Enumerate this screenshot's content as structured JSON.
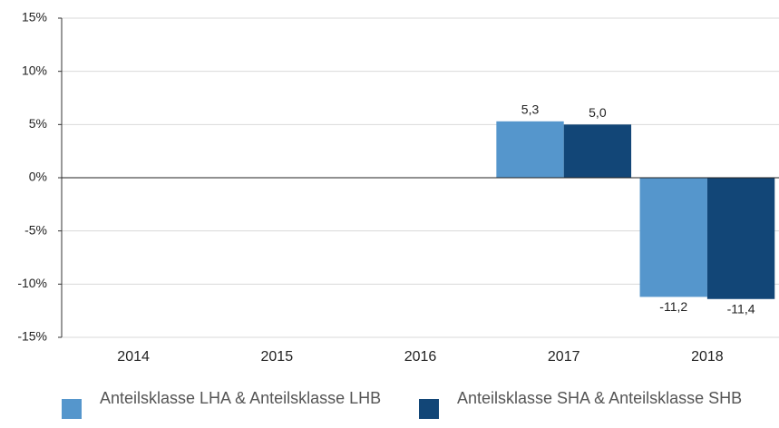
{
  "chart_data": {
    "type": "bar",
    "categories": [
      "2014",
      "2015",
      "2016",
      "2017",
      "2018"
    ],
    "series": [
      {
        "name": "Anteilsklasse LHA & Anteilsklasse LHB",
        "color": "#5596cc",
        "values": [
          null,
          null,
          null,
          5.3,
          -11.2
        ],
        "value_labels": [
          null,
          null,
          null,
          "5,3",
          "-11,2"
        ]
      },
      {
        "name": "Anteilsklasse SHA & Anteilsklasse SHB",
        "color": "#124677",
        "values": [
          null,
          null,
          null,
          5.0,
          -11.4
        ],
        "value_labels": [
          null,
          null,
          null,
          "5,0",
          "-11,4"
        ]
      }
    ],
    "ylim": [
      -15,
      15
    ],
    "yticks": [
      {
        "value": -15,
        "label": "-15%"
      },
      {
        "value": -10,
        "label": "-10%"
      },
      {
        "value": -5,
        "label": "-5%"
      },
      {
        "value": 0,
        "label": "0%"
      },
      {
        "value": 5,
        "label": "5%"
      },
      {
        "value": 10,
        "label": "10%"
      },
      {
        "value": 15,
        "label": "15%"
      }
    ],
    "grid": true
  }
}
